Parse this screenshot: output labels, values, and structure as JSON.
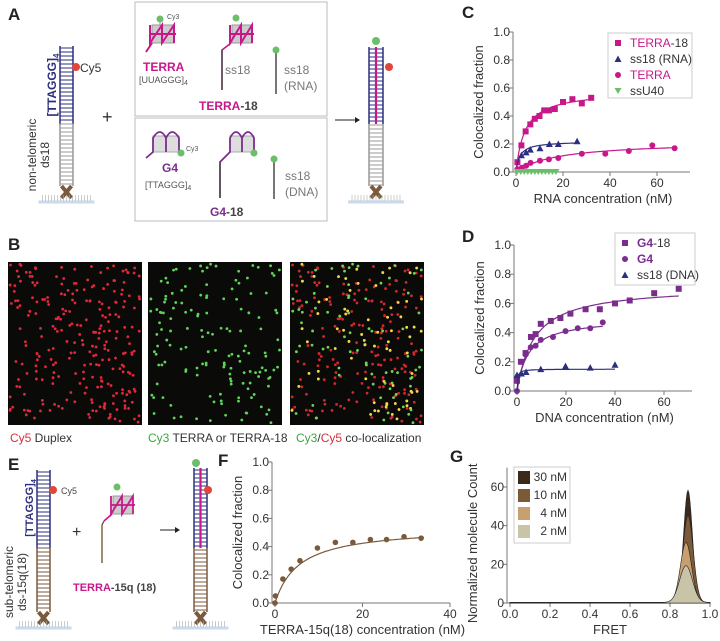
{
  "panels": {
    "A": "A",
    "B": "B",
    "C": "C",
    "D": "D",
    "E": "E",
    "F": "F",
    "G": "G"
  },
  "colors": {
    "magenta": "#c8178a",
    "navy": "#2b2f7e",
    "green": "#6cbf6a",
    "purple": "#7b2d8e",
    "brown": "#7a5a3c",
    "red": "#e0463a",
    "gray": "#888888"
  },
  "panelA": {
    "duplex_telomeric": "[TTAGGG]",
    "duplex_telomeric_sub": "4",
    "duplex_nontelo_line1": "non-telomeric",
    "duplex_nontelo_line2": "ds18",
    "cy5": "Cy5",
    "plus": "+",
    "cy3_top": "Cy3",
    "terra": "TERRA",
    "terra_seq": "[UUAGGG]",
    "terra_seq_sub": "4",
    "ss18": "ss18",
    "ss18_rna_1": "ss18",
    "ss18_rna_2": "(RNA)",
    "terra18_main": "TERRA",
    "terra18_suffix": "-18",
    "cy3_bottom": "Cy3",
    "g4": "G4",
    "g4_seq": "[TTAGGG]",
    "g4_seq_sub": "4",
    "ss18_dna_1": "ss18",
    "ss18_dna_2": "(DNA)",
    "g418_main": "G4",
    "g418_suffix": "-18"
  },
  "panelB": {
    "captions": [
      {
        "p1": "Cy5",
        "p1_color": "#d4303a",
        "p2": " Duplex",
        "p3": "",
        "p3_color": "#333",
        "p4": ""
      },
      {
        "p1": "Cy3",
        "p1_color": "#3aa83a",
        "p2": " TERRA or TERRA-18",
        "p3": "",
        "p3_color": "#333",
        "p4": ""
      },
      {
        "p1": "Cy3",
        "p1_color": "#3aa83a",
        "p2": "/",
        "p3": "Cy5",
        "p3_color": "#d4303a",
        "p4": " co-localization"
      }
    ]
  },
  "panelE": {
    "telomeric": "[TTAGGG]",
    "telomeric_sub": "4",
    "sub_line1": "sub-telomeric",
    "sub_line2": "ds-15q(18)",
    "cy5": "Cy5",
    "plus": "+",
    "rna_main": "TERRA",
    "rna_suffix": "-15q (18)"
  },
  "chart_data": [
    {
      "id": "C",
      "type": "scatter",
      "xlabel": "RNA concentration (nM)",
      "ylabel": "Colocalized fraction",
      "xlim": [
        0,
        75
      ],
      "ylim": [
        0,
        1.0
      ],
      "xticks": [
        "0",
        "20",
        "40",
        "60"
      ],
      "xtick_values": [
        0,
        20,
        40,
        60
      ],
      "yticks": [
        "0.0",
        "0.2",
        "0.4",
        "0.6",
        "0.8",
        "1.0"
      ],
      "ytick_values": [
        0,
        0.2,
        0.4,
        0.6,
        0.8,
        1.0
      ],
      "legend": "top-right",
      "series": [
        {
          "name": "TERRA",
          "suffix": "-18",
          "marker": "square",
          "color": "#c8178a",
          "label_color": "#c8178a",
          "x": [
            0.6,
            2.3,
            4.1,
            6.1,
            8,
            10,
            12,
            14,
            16.5,
            20,
            24,
            28,
            32
          ],
          "y": [
            0.07,
            0.19,
            0.29,
            0.34,
            0.38,
            0.4,
            0.44,
            0.44,
            0.45,
            0.5,
            0.52,
            0.49,
            0.53
          ],
          "fit": {
            "bmax": 0.58,
            "kd": 3.8,
            "xmax": 32
          }
        },
        {
          "name": "ss18 (RNA)",
          "suffix": "",
          "marker": "triangle",
          "color": "#2b2f7e",
          "label_color": "#333",
          "x": [
            2.3,
            4.3,
            6.1,
            10.2,
            14.2,
            18,
            26
          ],
          "y": [
            0.12,
            0.14,
            0.16,
            0.17,
            0.2,
            0.2,
            0.22
          ],
          "fit": {
            "bmax": 0.22,
            "kd": 1.6,
            "xmax": 26
          }
        },
        {
          "name": "TERRA",
          "suffix": "",
          "marker": "circle",
          "color": "#c8178a",
          "label_color": "#c8178a",
          "x": [
            0.6,
            2.5,
            4.3,
            6.2,
            10.2,
            14,
            18,
            28,
            38,
            48,
            58,
            67.5
          ],
          "y": [
            0.02,
            0.03,
            0.045,
            0.065,
            0.08,
            0.09,
            0.1,
            0.13,
            0.13,
            0.15,
            0.19,
            0.17
          ],
          "fit": {
            "bmax": 0.22,
            "kd": 18,
            "xmax": 68
          }
        },
        {
          "name": "ssU40",
          "suffix": "",
          "marker": "triangle-down",
          "color": "#6cbf6a",
          "label_color": "#333",
          "x": [
            0.5,
            2,
            3.5,
            5,
            6.5,
            8,
            9.5,
            11,
            12.5,
            14,
            15.5,
            17
          ],
          "y": [
            0,
            0,
            0,
            0,
            0,
            0,
            0,
            0,
            0,
            0,
            0,
            0
          ],
          "fit": null
        }
      ]
    },
    {
      "id": "D",
      "type": "scatter",
      "xlabel": "DNA concentration (nM)",
      "ylabel": "Colocalized fraction",
      "xlim": [
        0,
        71
      ],
      "ylim": [
        0,
        1.0
      ],
      "xticks": [
        "0",
        "20",
        "40",
        "60"
      ],
      "xtick_values": [
        0,
        20,
        40,
        60
      ],
      "yticks": [
        "0.0",
        "0.2",
        "0.4",
        "0.6",
        "0.8",
        "1.0"
      ],
      "ytick_values": [
        0,
        0.2,
        0.4,
        0.6,
        0.8,
        1.0
      ],
      "legend": "top-right",
      "series": [
        {
          "name": "G4",
          "suffix": "-18",
          "marker": "square",
          "color": "#7b2d8e",
          "label_color": "#7b2d8e",
          "x": [
            0,
            1.6,
            3.5,
            5.7,
            7.6,
            9.7,
            13.8,
            17.7,
            21.8,
            28,
            33.8,
            40,
            46,
            56,
            66
          ],
          "y": [
            0.07,
            0.2,
            0.26,
            0.37,
            0.39,
            0.46,
            0.48,
            0.5,
            0.53,
            0.56,
            0.56,
            0.6,
            0.62,
            0.67,
            0.7
          ],
          "fit": {
            "bmax": 0.72,
            "kd": 7,
            "xmax": 66
          }
        },
        {
          "name": "G4",
          "suffix": "",
          "marker": "circle",
          "color": "#7b2d8e",
          "label_color": "#7b2d8e",
          "x": [
            0,
            3.5,
            5.6,
            7.6,
            9.7,
            14.7,
            19.8,
            24.8,
            29.9,
            35
          ],
          "y": [
            0,
            0.25,
            0.3,
            0.31,
            0.35,
            0.37,
            0.41,
            0.43,
            0.43,
            0.47
          ],
          "fit": {
            "bmax": 0.5,
            "kd": 4.5,
            "xmax": 35
          }
        },
        {
          "name": "ss18 (DNA)",
          "suffix": "",
          "marker": "triangle",
          "color": "#2b2f7e",
          "label_color": "#333",
          "x": [
            0,
            1.8,
            3.7,
            9.7,
            19.8,
            29.9,
            40
          ],
          "y": [
            0.11,
            0.12,
            0.13,
            0.15,
            0.17,
            0.16,
            0.18
          ],
          "fit": {
            "bmax": 0.15,
            "kd": 0.25,
            "xmax": 40
          }
        }
      ]
    },
    {
      "id": "F",
      "type": "scatter",
      "xlabel": "TERRA-15q(18) concentration (nM)",
      "ylabel": "Colocalized  fraction",
      "xlim": [
        0,
        40
      ],
      "ylim": [
        0,
        1.0
      ],
      "xticks": [
        "0",
        "20",
        "40"
      ],
      "xtick_values": [
        0,
        20,
        40
      ],
      "yticks": [
        "0.0",
        "0.2",
        "0.4",
        "0.6",
        "0.8",
        "1.0"
      ],
      "ytick_values": [
        0,
        0.2,
        0.4,
        0.6,
        0.8,
        1.0
      ],
      "legend": "none",
      "series": [
        {
          "name": "TERRA-15q(18)",
          "suffix": "",
          "marker": "circle",
          "color": "#7a5a3c",
          "label_color": "#333",
          "x": [
            0,
            0.1,
            1.8,
            3.7,
            5.7,
            9.7,
            13.8,
            17.8,
            21.8,
            25.5,
            29.5,
            33.4
          ],
          "y": [
            0,
            0.05,
            0.17,
            0.24,
            0.3,
            0.39,
            0.43,
            0.43,
            0.45,
            0.45,
            0.47,
            0.46
          ],
          "fit": {
            "bmax": 0.54,
            "kd": 5.5,
            "xmax": 34
          }
        }
      ]
    },
    {
      "id": "G",
      "type": "area",
      "xlabel": "FRET",
      "ylabel": "Normalized molecule Count",
      "xlim": [
        0,
        1.0
      ],
      "ylim": [
        0,
        70
      ],
      "xticks": [
        "0.0",
        "0.2",
        "0.4",
        "0.6",
        "0.8",
        "1.0"
      ],
      "xtick_values": [
        0,
        0.2,
        0.4,
        0.6,
        0.8,
        1.0
      ],
      "yticks": [
        "0",
        "20",
        "40",
        "60"
      ],
      "ytick_values": [
        0,
        20,
        40,
        60
      ],
      "legend": "top-left",
      "series": [
        {
          "name": "30 nM",
          "color": "#3b2a1c",
          "center": 0.89,
          "sd": 0.022,
          "peak": 58
        },
        {
          "name": "10 nM",
          "color": "#7b5a3a",
          "center": 0.89,
          "sd": 0.026,
          "peak": 45
        },
        {
          "name": "4 nM",
          "color": "#c8a070",
          "center": 0.88,
          "sd": 0.028,
          "peak": 31
        },
        {
          "name": "2 nM",
          "color": "#c9c3a8",
          "center": 0.88,
          "sd": 0.032,
          "peak": 19
        }
      ]
    }
  ]
}
